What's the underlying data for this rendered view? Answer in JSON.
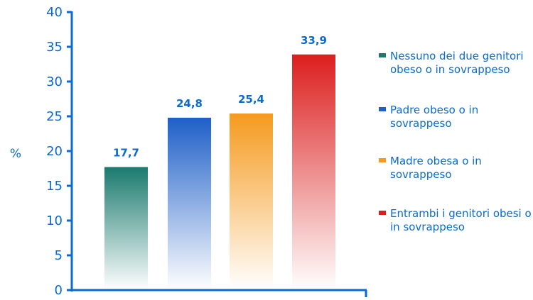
{
  "chart_data": {
    "type": "bar",
    "categories": [
      "Nessuno dei due genitori obeso o in sovrappeso",
      "Padre obeso o in sovrappeso",
      "Madre obesa o in sovrappeso",
      "Entrambi i genitori obesi o in sovrappeso"
    ],
    "values": [
      17.7,
      24.8,
      25.4,
      33.9
    ],
    "value_labels": [
      "17,7",
      "24,8",
      "25,4",
      "33,9"
    ],
    "colors": [
      "#1a7a6e",
      "#1e5fc8",
      "#f59a1e",
      "#dc1e1e"
    ],
    "ylabel": "%",
    "ylim": [
      0,
      40
    ],
    "yticks": [
      0,
      5,
      10,
      15,
      20,
      25,
      30,
      35,
      40
    ],
    "grid": false,
    "legend_placement": "right"
  },
  "legend": {
    "items": [
      {
        "label": "Nessuno dei due genitori obeso o in sovrappeso",
        "color": "#1a7a6e"
      },
      {
        "label": "Padre obeso o in sovrappeso",
        "color": "#1e5fc8"
      },
      {
        "label": "Madre obesa o in sovrappeso",
        "color": "#f59a1e"
      },
      {
        "label": "Entrambi i genitori obesi o in sovrappeso",
        "color": "#dc1e1e"
      }
    ]
  }
}
